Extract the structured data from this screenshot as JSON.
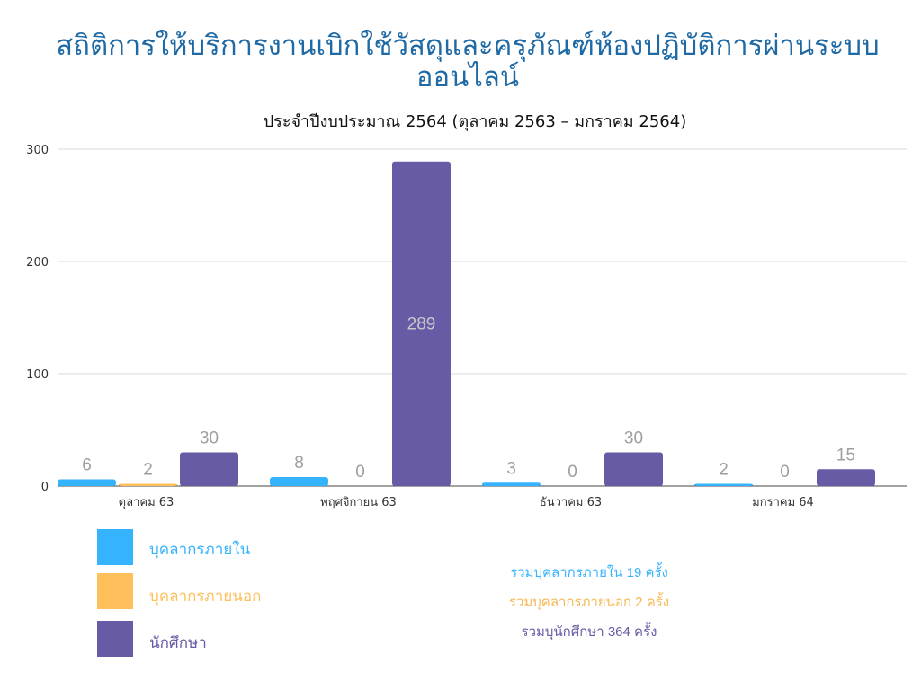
{
  "chart_data": {
    "type": "bar",
    "title": "สถิติการให้บริการงานเบิกใช้วัสดุและครุภัณฑ์ห้องปฏิบัติการผ่านระบบออนไลน์",
    "subtitle": "ประจำปีงบประมาณ 2564 (ตุลาคม 2563 – มกราคม 2564)",
    "categories": [
      "ตุลาคม 63",
      "พฤศจิกายน 63",
      "ธันวาคม 63",
      "มกราคม 64"
    ],
    "series": [
      {
        "name": "บุคลากรภายใน",
        "values": [
          6,
          8,
          3,
          2
        ],
        "color": "#36b3ff"
      },
      {
        "name": "บุคลากรภายนอก",
        "values": [
          2,
          0,
          0,
          0
        ],
        "color": "#ffbf5a"
      },
      {
        "name": "นักศึกษา",
        "values": [
          30,
          289,
          30,
          15
        ],
        "color": "#675ba6"
      }
    ],
    "y_ticks": [
      0,
      100,
      200,
      300
    ],
    "ylim": [
      0,
      300
    ],
    "grid": true,
    "legend_position": "bottom-left"
  },
  "totals": [
    {
      "text": "รวมบุคลากรภายใน 19 ครั้ง",
      "color": "#36b3ff"
    },
    {
      "text": "รวมบุคลากรภายนอก 2 ครั้ง",
      "color": "#f5b955"
    },
    {
      "text": "รวมบุนักศึกษา 364 ครั้ง",
      "color": "#675ba6"
    }
  ]
}
